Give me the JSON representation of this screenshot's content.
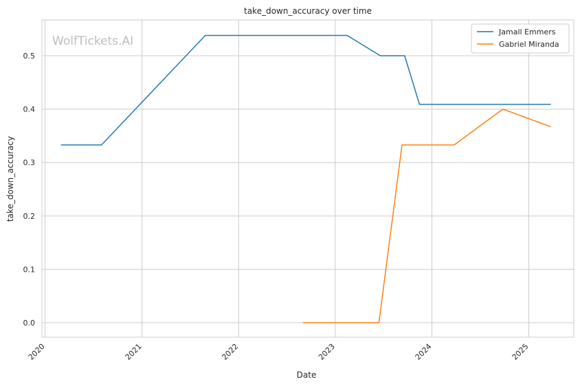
{
  "watermark": "WolfTickets.AI",
  "chart_data": {
    "type": "line",
    "title": "take_down_accuracy over time",
    "xlabel": "Date",
    "ylabel": "take_down_accuracy",
    "x_axis_type": "date",
    "xlim": [
      "2019-12-20",
      "2025-06-20"
    ],
    "ylim": [
      -0.027,
      0.567
    ],
    "x_ticks": [
      "2020",
      "2021",
      "2022",
      "2023",
      "2024",
      "2025"
    ],
    "y_ticks": [
      "0.0",
      "0.1",
      "0.2",
      "0.3",
      "0.4",
      "0.5"
    ],
    "grid": true,
    "legend_position": "top-right",
    "series": [
      {
        "name": "Jamall Emmers",
        "color": "#1f77b4",
        "points": [
          {
            "x": "2020-03-01",
            "y": 0.333
          },
          {
            "x": "2020-08-01",
            "y": 0.333
          },
          {
            "x": "2021-08-28",
            "y": 0.538
          },
          {
            "x": "2023-02-15",
            "y": 0.538
          },
          {
            "x": "2023-06-20",
            "y": 0.5
          },
          {
            "x": "2023-09-20",
            "y": 0.5
          },
          {
            "x": "2023-11-15",
            "y": 0.409
          },
          {
            "x": "2025-03-25",
            "y": 0.409
          }
        ]
      },
      {
        "name": "Gabriel Miranda",
        "color": "#ff7f0e",
        "points": [
          {
            "x": "2022-09-01",
            "y": 0.0
          },
          {
            "x": "2023-06-15",
            "y": 0.0
          },
          {
            "x": "2023-09-10",
            "y": 0.333
          },
          {
            "x": "2024-03-25",
            "y": 0.333
          },
          {
            "x": "2024-09-25",
            "y": 0.4
          },
          {
            "x": "2025-03-25",
            "y": 0.367
          }
        ]
      }
    ]
  }
}
